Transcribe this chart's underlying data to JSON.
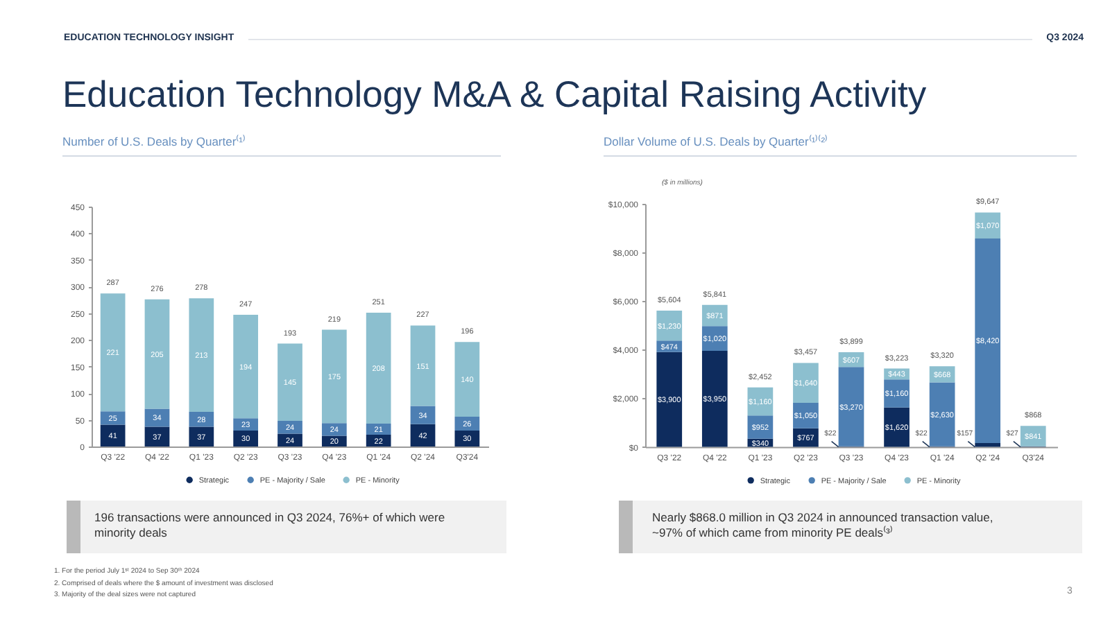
{
  "chart_data": [
    {
      "type": "other",
      "title": "Education Technology M&A & Capital Raising Activity",
      "annotations": [
        "EDUCATION TECHNOLOGY INSIGHT",
        "Q3 2024"
      ]
    },
    {
      "type": "bar",
      "stacked": true,
      "title": "Number of U.S. Deals by Quarter⁽¹⁾",
      "categories": [
        "Q3 '22",
        "Q4 '22",
        "Q1 '23",
        "Q2 '23",
        "Q3 '23",
        "Q4 '23",
        "Q1 '24",
        "Q2 '24",
        "Q3'24"
      ],
      "series": [
        {
          "name": "Strategic",
          "color": "#0e2c5e",
          "values": [
            41,
            37,
            37,
            30,
            24,
            20,
            22,
            42,
            30
          ]
        },
        {
          "name": "PE - Majority / Sale",
          "color": "#4d7fb3",
          "values": [
            25,
            34,
            28,
            23,
            24,
            24,
            21,
            34,
            26
          ]
        },
        {
          "name": "PE - Minority",
          "color": "#8cbfcf",
          "values": [
            221,
            205,
            213,
            194,
            145,
            175,
            208,
            151,
            140
          ]
        }
      ],
      "ylim": [
        0,
        450
      ],
      "yticks": [
        0,
        50,
        100,
        150,
        200,
        250,
        300,
        350,
        400,
        450
      ],
      "data_labels": true,
      "totals": [
        "287",
        "276",
        "278",
        "247",
        "193",
        "219",
        "251",
        "227",
        "196"
      ],
      "legend": "bottom",
      "annotations": [
        "196 transactions were announced in Q3 2024, 76%+ of which were minority deals"
      ]
    },
    {
      "type": "bar",
      "stacked": true,
      "title": "Dollar Volume of U.S. Deals by Quarter⁽¹⁾⁽²⁾",
      "subtitle": "($ in millions)",
      "categories": [
        "Q3 '22",
        "Q4 '22",
        "Q1 '23",
        "Q2 '23",
        "Q3 '23",
        "Q4 '23",
        "Q1 '24",
        "Q2 '24",
        "Q3'24"
      ],
      "series": [
        {
          "name": "Strategic",
          "color": "#0e2c5e",
          "values": [
            3900,
            3950,
            340,
            767,
            22,
            1620,
            22,
            157,
            27
          ],
          "value_labels": [
            "$3,900",
            "$3,950",
            "$340",
            "$767",
            "$22",
            "$1,620",
            "$22",
            "$157",
            "$27"
          ]
        },
        {
          "name": "PE - Majority / Sale",
          "color": "#4d7fb3",
          "values": [
            474,
            1020,
            952,
            1050,
            3270,
            1160,
            2630,
            8420,
            null
          ],
          "value_labels": [
            "$474",
            "$1,020",
            "$952",
            "$1,050",
            "$3,270",
            "$1,160",
            "$2,630",
            "$8,420",
            null
          ]
        },
        {
          "name": "PE - Minority",
          "color": "#8cbfcf",
          "values": [
            1230,
            871,
            1160,
            1640,
            607,
            443,
            668,
            1070,
            841
          ],
          "value_labels": [
            "$1,230",
            "$871",
            "$1,160",
            "$1,640",
            "$607",
            "$443",
            "$668",
            "$1,070",
            "$841"
          ]
        }
      ],
      "ylim": [
        0,
        10000
      ],
      "yticks": [
        {
          "value": 0,
          "label": "$0"
        },
        {
          "value": 2000,
          "label": "$2,000"
        },
        {
          "value": 4000,
          "label": "$4,000"
        },
        {
          "value": 6000,
          "label": "$6,000"
        },
        {
          "value": 8000,
          "label": "$8,000"
        },
        {
          "value": 10000,
          "label": "$10,000"
        }
      ],
      "totals": [
        "$5,604",
        "$5,841",
        "$2,452",
        "$3,457",
        "$3,899",
        "$3,223",
        "$3,320",
        "$9,647",
        "$868"
      ],
      "legend": "bottom",
      "annotations": [
        "Nearly $868.0 million in Q3 2024 in announced transaction value, ~97% of which came from minority PE deals⁽³⁾"
      ]
    },
    {
      "type": "other",
      "annotations": [
        "1. For the period July 1ˢᵗ 2024 to Sep 30ᵗʰ 2024",
        "2. Comprised of deals where the $ amount of investment was disclosed",
        "3. Majority of the deal sizes were not captured",
        "3"
      ]
    }
  ]
}
